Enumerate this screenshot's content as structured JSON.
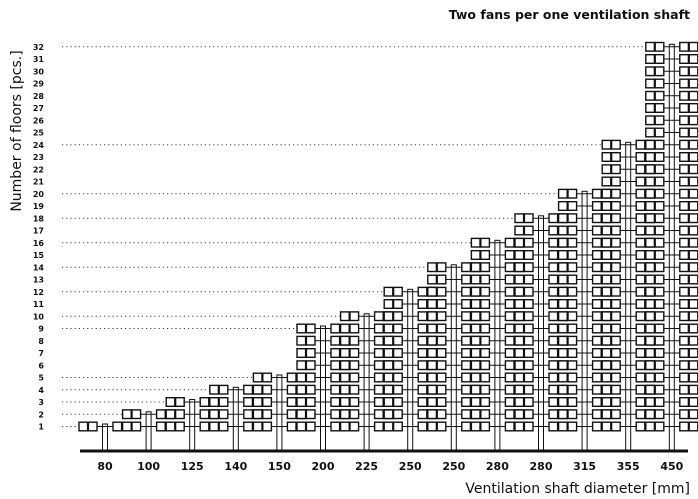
{
  "chart_data": {
    "type": "bar",
    "title": "Two fans per one ventilation shaft",
    "xlabel": "Ventilation shaft diameter [mm]",
    "ylabel": "Number of floors [pcs.]",
    "categories": [
      "80",
      "100",
      "125",
      "140",
      "150",
      "200",
      "225",
      "250",
      "250",
      "280",
      "280",
      "315",
      "355",
      "450"
    ],
    "values": [
      1,
      2,
      3,
      4,
      5,
      9,
      10,
      12,
      14,
      16,
      18,
      20,
      24,
      32
    ],
    "ylim": [
      0,
      32
    ],
    "yticks": [
      1,
      2,
      3,
      4,
      5,
      6,
      7,
      8,
      9,
      10,
      11,
      12,
      13,
      14,
      15,
      16,
      17,
      18,
      19,
      20,
      21,
      22,
      23,
      24,
      25,
      26,
      27,
      28,
      29,
      30,
      31,
      32
    ],
    "grid": "dotted horizontal lines at the top of each column"
  }
}
